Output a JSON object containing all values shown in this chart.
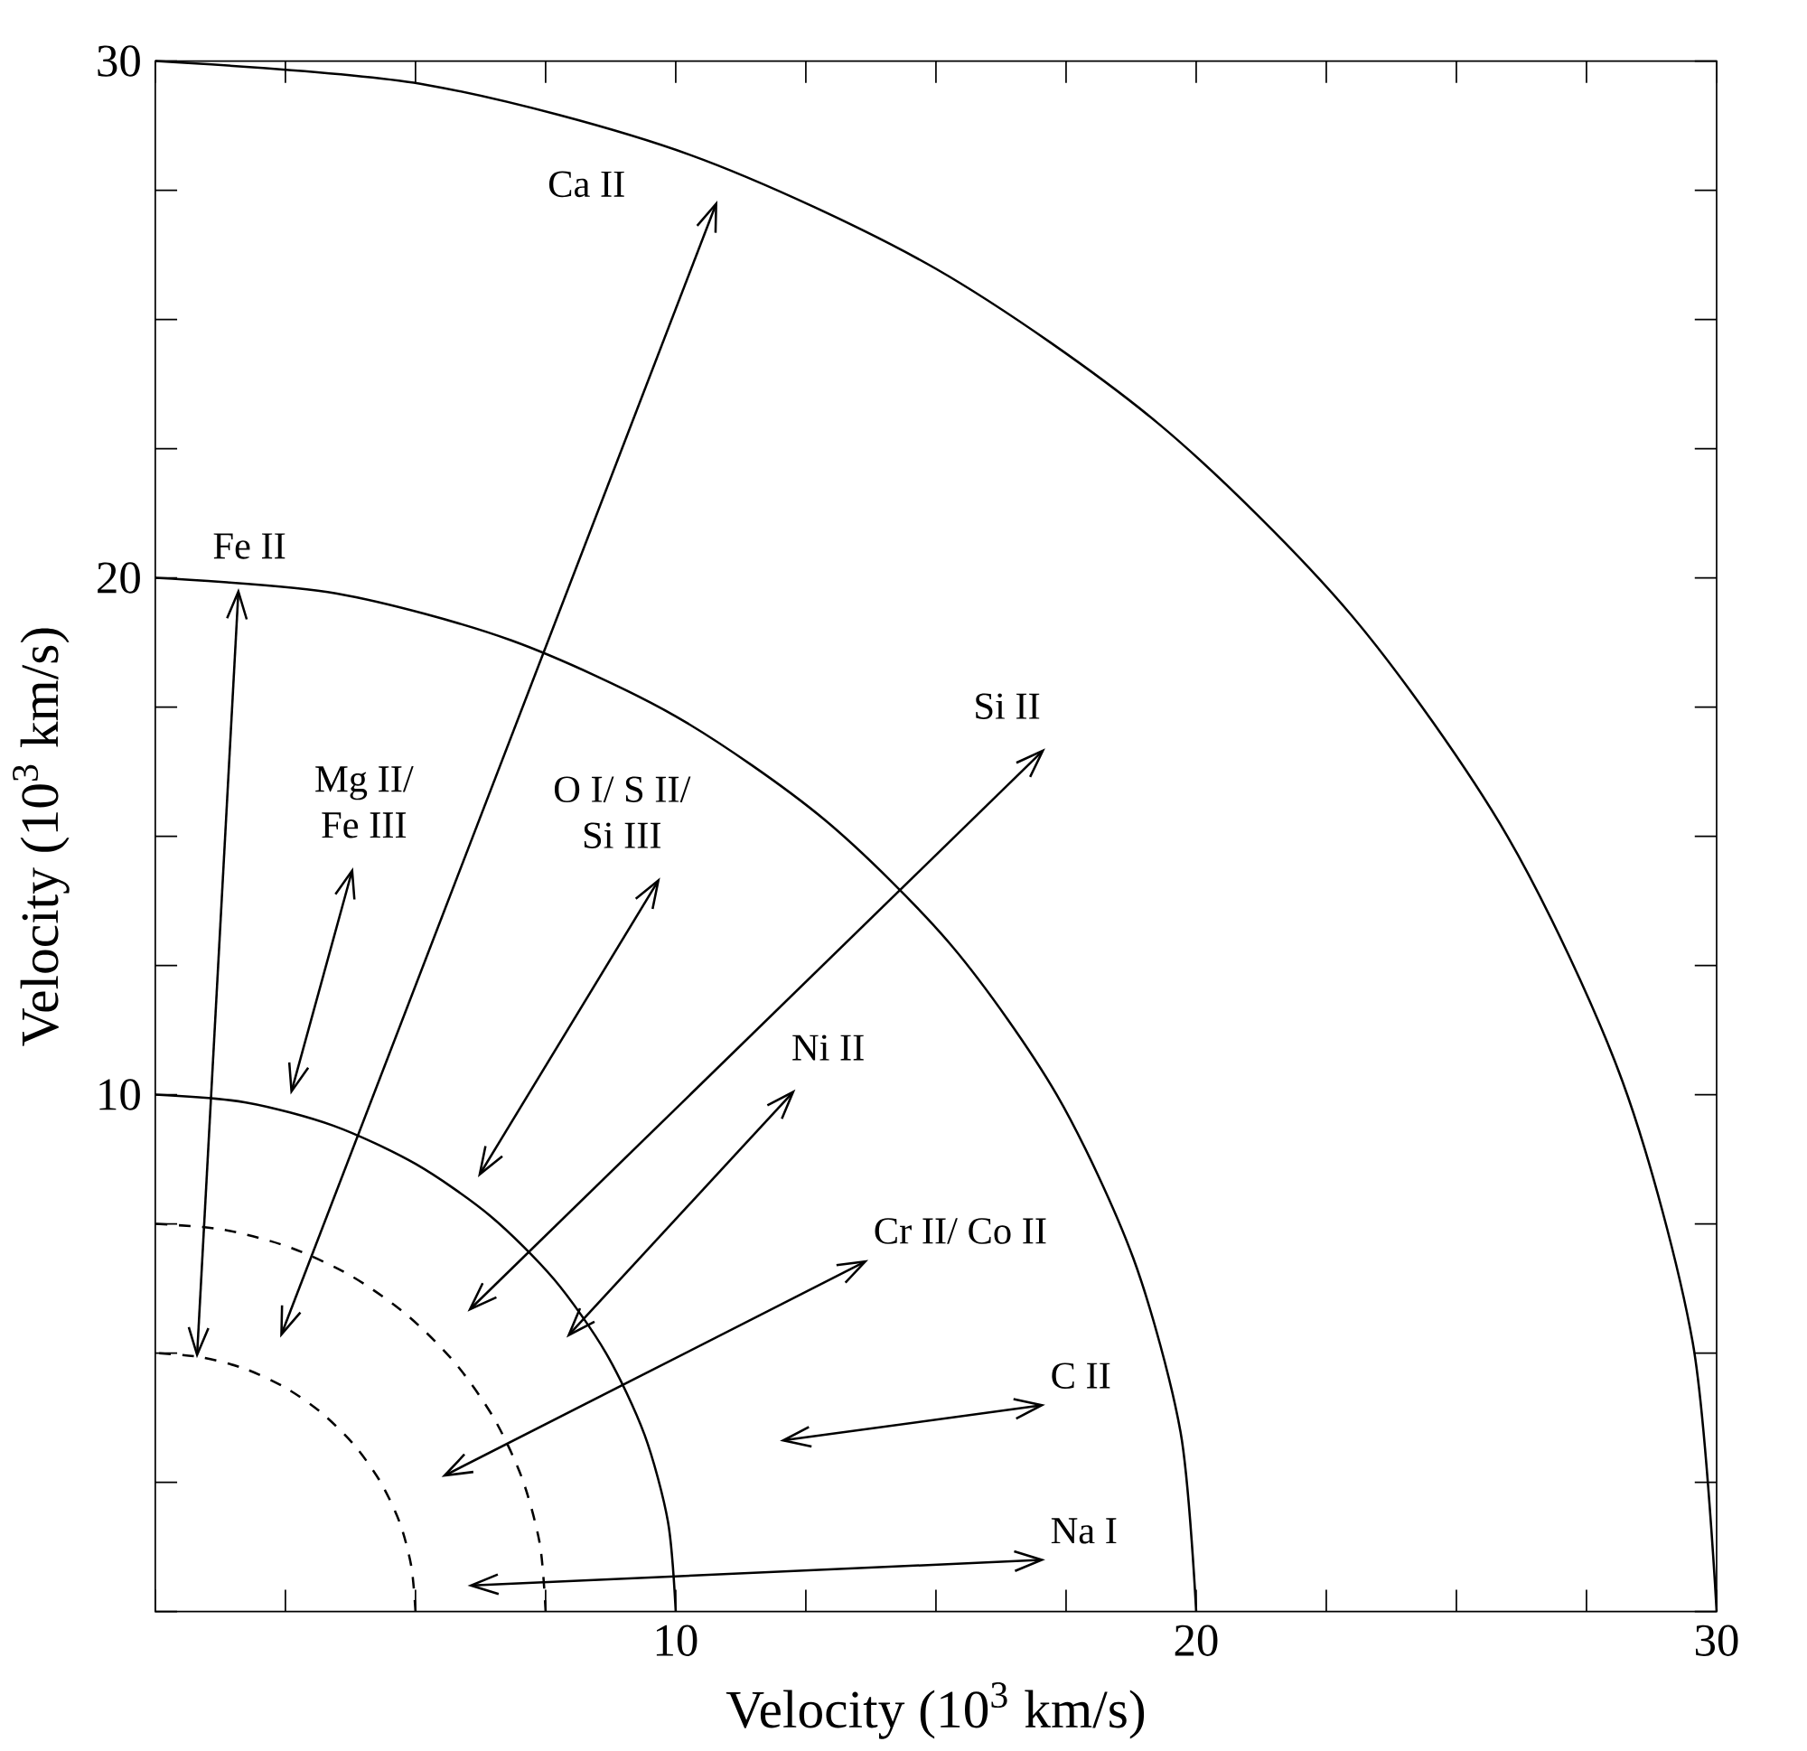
{
  "chart_data": {
    "type": "line",
    "xlabel": "Velocity (10$^{3}$ km/s)",
    "ylabel": "Velocity (10$^{3}$ km/s)",
    "xlim": [
      0,
      30
    ],
    "ylim": [
      0,
      30
    ],
    "xticks": [
      {
        "value": 0,
        "label": null
      },
      {
        "value": 2.5,
        "label": null
      },
      {
        "value": 5,
        "label": null
      },
      {
        "value": 7.5,
        "label": null
      },
      10,
      {
        "value": 12.5,
        "label": null
      },
      {
        "value": 15,
        "label": null
      },
      {
        "value": 17.5,
        "label": null
      },
      20,
      {
        "value": 22.5,
        "label": null
      },
      {
        "value": 25,
        "label": null
      },
      {
        "value": 27.5,
        "label": null
      },
      30
    ],
    "yticks": [
      {
        "value": 0,
        "label": null
      },
      {
        "value": 2.5,
        "label": null
      },
      {
        "value": 5,
        "label": null
      },
      {
        "value": 7.5,
        "label": null
      },
      10,
      {
        "value": 12.5,
        "label": null
      },
      {
        "value": 15,
        "label": null
      },
      {
        "value": 17.5,
        "label": null
      },
      20,
      {
        "value": 22.5,
        "label": null
      },
      {
        "value": 25,
        "label": null
      },
      {
        "value": 27.5,
        "label": null
      },
      30
    ],
    "grid": false,
    "marker": "none",
    "series": [
      {
        "color": "#000000",
        "line_style": "dashed",
        "x": [
          5,
          4.92,
          4.7,
          4.33,
          3.83,
          3.21,
          2.5,
          1.71,
          0.87,
          0
        ],
        "values": [
          0,
          0.87,
          1.71,
          2.5,
          3.21,
          3.83,
          4.33,
          4.7,
          4.92,
          5
        ]
      },
      {
        "color": "#000000",
        "line_style": "dashed",
        "x": [
          7.5,
          7.39,
          7.05,
          6.5,
          5.75,
          4.82,
          3.75,
          2.57,
          1.3,
          0
        ],
        "values": [
          0,
          1.3,
          2.57,
          3.75,
          4.82,
          5.75,
          6.5,
          7.05,
          7.39,
          7.5
        ]
      },
      {
        "color": "#000000",
        "line_style": "solid",
        "x": [
          10,
          9.85,
          9.4,
          8.66,
          7.66,
          6.43,
          5,
          3.42,
          1.74,
          0
        ],
        "values": [
          0,
          1.74,
          3.42,
          5,
          6.43,
          7.66,
          8.66,
          9.4,
          9.85,
          10
        ]
      },
      {
        "color": "#000000",
        "line_style": "solid",
        "x": [
          20,
          19.7,
          18.79,
          17.32,
          15.32,
          12.86,
          10,
          6.84,
          3.47,
          0
        ],
        "values": [
          0,
          3.47,
          6.84,
          10,
          12.86,
          15.32,
          17.32,
          18.79,
          19.7,
          20
        ]
      },
      {
        "color": "#000000",
        "line_style": "solid",
        "x": [
          30,
          29.54,
          28.19,
          25.98,
          22.98,
          19.28,
          15,
          10.26,
          5.21,
          0
        ],
        "values": [
          0,
          5.21,
          10.26,
          15,
          19.28,
          22.98,
          25.98,
          28.19,
          29.54,
          30
        ]
      },
      {
        "name": "Fe II",
        "color": "#000000",
        "line_style": "solid",
        "x": [
          0.8,
          1.6
        ],
        "values": [
          4.9,
          19.8
        ]
      },
      {
        "name": "Ca II",
        "color": "#000000",
        "line_style": "solid",
        "x": [
          2.4,
          10.8
        ],
        "values": [
          5.3,
          27.3
        ]
      },
      {
        "name": "Mg II/ Fe III",
        "color": "#000000",
        "line_style": "solid",
        "x": [
          2.6,
          3.8
        ],
        "values": [
          10.0,
          14.4
        ]
      },
      {
        "name": "O I/ S II/ Si III",
        "color": "#000000",
        "line_style": "solid",
        "x": [
          6.2,
          9.7
        ],
        "values": [
          8.4,
          14.2
        ]
      },
      {
        "name": "Si II",
        "color": "#000000",
        "line_style": "solid",
        "x": [
          6.0,
          17.1
        ],
        "values": [
          5.8,
          16.7
        ]
      },
      {
        "name": "Ni II",
        "color": "#000000",
        "line_style": "solid",
        "x": [
          7.9,
          12.3
        ],
        "values": [
          5.3,
          10.1
        ]
      },
      {
        "name": "Cr II/ Co II",
        "color": "#000000",
        "line_style": "solid",
        "x": [
          5.5,
          13.7
        ],
        "values": [
          2.6,
          6.8
        ]
      },
      {
        "name": "C II",
        "color": "#000000",
        "line_style": "solid",
        "x": [
          12.0,
          17.1
        ],
        "values": [
          3.3,
          4.0
        ]
      },
      {
        "name": "Na I",
        "color": "#000000",
        "line_style": "solid",
        "x": [
          6.0,
          17.1
        ],
        "values": [
          0.5,
          1.0
        ]
      }
    ]
  }
}
